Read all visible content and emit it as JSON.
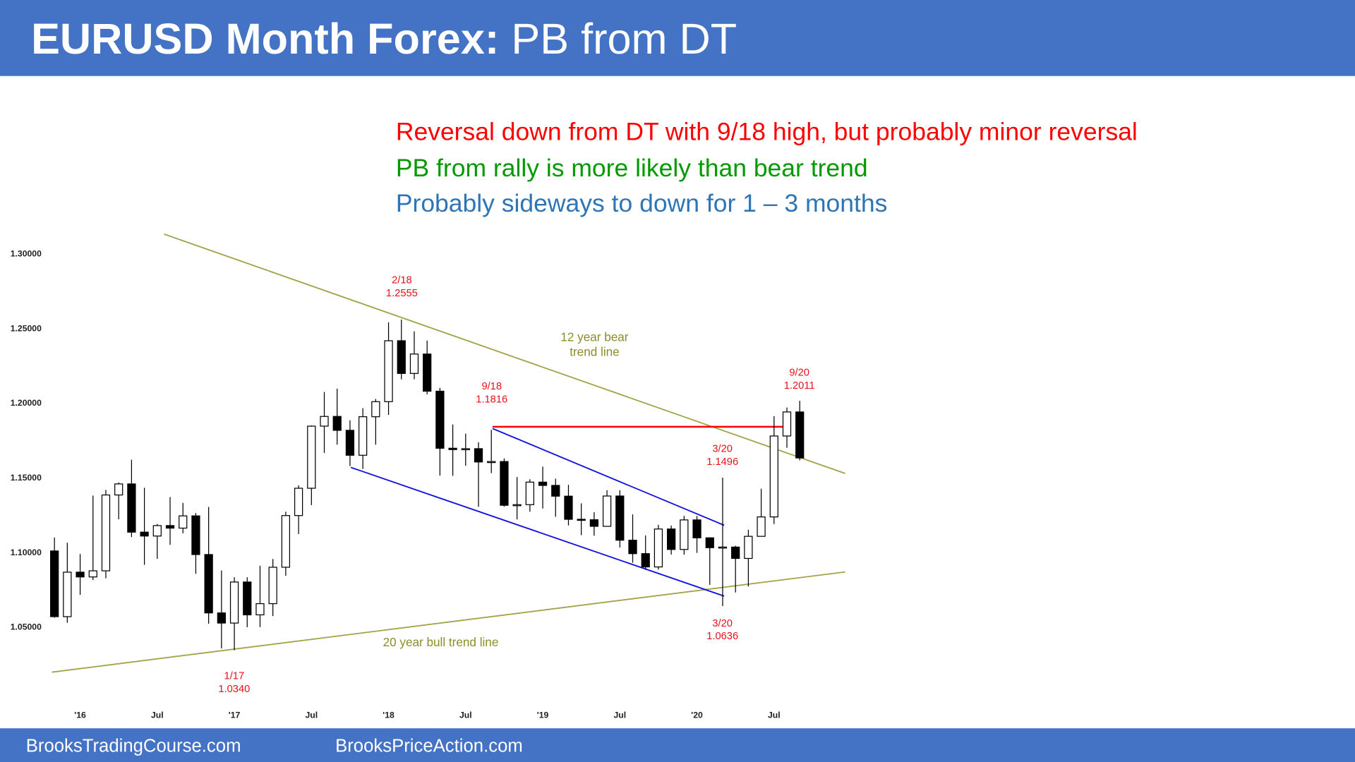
{
  "chart_data": {
    "type": "candlestick",
    "title": [
      "EURUSD Month Forex:",
      "PB from DT"
    ],
    "commentary": [
      {
        "text": "Reversal down from DT with 9/18 high, but probably minor reversal",
        "color": "#ff0000"
      },
      {
        "text": "PB from rally is more likely than bear trend",
        "color": "#009a00"
      },
      {
        "text": "Probably sideways to down for 1 – 3 months",
        "color": "#2e75b6"
      }
    ],
    "annotations": [
      {
        "lines": [
          "2/18",
          "1.2555"
        ],
        "color": "#e8101a"
      },
      {
        "lines": [
          "12 year bear",
          "trend line"
        ],
        "color": "#8c8c28"
      },
      {
        "lines": [
          "9/18",
          "1.1816"
        ],
        "color": "#e8101a"
      },
      {
        "lines": [
          "9/20",
          "1.2011"
        ],
        "color": "#e8101a"
      },
      {
        "lines": [
          "3/20",
          "1.1496"
        ],
        "color": "#e8101a"
      },
      {
        "lines": [
          "3/20",
          "1.0636"
        ],
        "color": "#e8101a"
      },
      {
        "lines": [
          "1/17",
          "1.0340"
        ],
        "color": "#e8101a"
      },
      {
        "lines": [
          "20 year bull trend line"
        ],
        "color": "#8c8c28"
      }
    ],
    "footer": [
      "BrooksTradingCourse.com",
      "BrooksPriceAction.com"
    ],
    "categories": [
      null,
      null,
      "'16",
      null,
      null,
      null,
      null,
      null,
      "Jul",
      null,
      null,
      null,
      null,
      null,
      "'17",
      null,
      null,
      null,
      null,
      null,
      "Jul",
      null,
      null,
      null,
      null,
      null,
      "'18",
      null,
      null,
      null,
      null,
      null,
      "Jul",
      null,
      null,
      null,
      null,
      null,
      "'19",
      null,
      null,
      null,
      null,
      null,
      "Jul",
      null,
      null,
      null,
      null,
      null,
      "'20",
      null,
      null,
      null,
      null,
      null,
      "Jul",
      null,
      null
    ],
    "open": [
      1.1005,
      1.0565,
      1.0863,
      1.0831,
      1.0872,
      1.138,
      1.1454,
      1.1131,
      1.1105,
      1.1175,
      1.1158,
      1.124,
      1.0981,
      1.059,
      1.0522,
      1.0797,
      1.0577,
      1.0652,
      1.0896,
      1.1242,
      1.1425,
      1.1841,
      1.1906,
      1.1813,
      1.1646,
      1.1904,
      1.2005,
      1.2413,
      1.2194,
      1.2324,
      1.2075,
      1.1693,
      1.1684,
      1.169,
      1.1601,
      1.1604,
      1.1311,
      1.1315,
      1.1466,
      1.1444,
      1.1372,
      1.1217,
      1.1214,
      1.117,
      1.1373,
      1.1077,
      1.0987,
      1.0898,
      1.1152,
      1.1015,
      1.1213,
      1.1093,
      1.1027,
      1.1031,
      1.0955,
      1.1103,
      1.1233,
      1.1775,
      1.1936
    ],
    "high": [
      1.1095,
      1.106,
      1.0985,
      1.1376,
      1.1414,
      1.1464,
      1.1616,
      1.1428,
      1.1186,
      1.1366,
      1.1327,
      1.1259,
      1.13,
      1.0874,
      1.0829,
      1.0829,
      1.0906,
      1.0951,
      1.1268,
      1.1445,
      1.1846,
      1.207,
      1.2092,
      1.188,
      1.1961,
      1.2023,
      1.2537,
      1.2555,
      1.2476,
      1.2414,
      1.2097,
      1.1852,
      1.1791,
      1.1733,
      1.1816,
      1.1625,
      1.15,
      1.1485,
      1.157,
      1.1489,
      1.1448,
      1.1324,
      1.1265,
      1.1412,
      1.1412,
      1.125,
      1.1109,
      1.118,
      1.1175,
      1.124,
      1.1239,
      1.1096,
      1.1496,
      1.104,
      1.1147,
      1.1422,
      1.1908,
      1.1966,
      1.2011
    ],
    "low": [
      1.0558,
      1.0524,
      1.0711,
      1.081,
      1.0822,
      1.1217,
      1.1098,
      1.0912,
      1.0952,
      1.1046,
      1.1123,
      1.0852,
      1.0518,
      1.0352,
      1.034,
      1.0494,
      1.0495,
      1.0569,
      1.0839,
      1.1118,
      1.1312,
      1.1662,
      1.1717,
      1.1574,
      1.1554,
      1.1717,
      1.1916,
      1.2154,
      1.2155,
      1.2054,
      1.151,
      1.1508,
      1.1576,
      1.1301,
      1.1526,
      1.1302,
      1.1216,
      1.1268,
      1.1289,
      1.1234,
      1.1176,
      1.1111,
      1.1107,
      1.1181,
      1.1028,
      1.0926,
      1.0879,
      1.088,
      1.0981,
      1.098,
      1.0992,
      1.0778,
      1.0636,
      1.0727,
      1.0767,
      1.1104,
      1.1185,
      1.1696,
      1.1612
    ],
    "close": [
      1.0565,
      1.0863,
      1.0831,
      1.0872,
      1.138,
      1.1454,
      1.1131,
      1.1105,
      1.1175,
      1.1158,
      1.124,
      1.0981,
      1.059,
      1.0522,
      1.0797,
      1.0577,
      1.0652,
      1.0896,
      1.1242,
      1.1425,
      1.1841,
      1.1906,
      1.1813,
      1.1646,
      1.1904,
      1.2005,
      1.2413,
      1.2194,
      1.2324,
      1.2075,
      1.1693,
      1.1684,
      1.169,
      1.1601,
      1.1604,
      1.1311,
      1.1315,
      1.1466,
      1.1444,
      1.1372,
      1.1217,
      1.1214,
      1.117,
      1.1373,
      1.1077,
      1.0987,
      1.0898,
      1.1152,
      1.1015,
      1.1213,
      1.1093,
      1.1027,
      1.1031,
      1.0955,
      1.1103,
      1.1233,
      1.1775,
      1.1936,
      1.1628
    ],
    "up_color": "#ffffff",
    "down_color": "#000000",
    "ylim": [
      1.0,
      1.32
    ],
    "yticks": [
      {
        "value": 1.05,
        "label": "1.05000"
      },
      {
        "value": 1.1,
        "label": "1.10000"
      },
      {
        "value": 1.15,
        "label": "1.15000"
      },
      {
        "value": 1.2,
        "label": "1.20000"
      },
      {
        "value": 1.25,
        "label": "1.25000"
      },
      {
        "value": 1.3,
        "label": "1.30000"
      }
    ],
    "grid": false
  }
}
